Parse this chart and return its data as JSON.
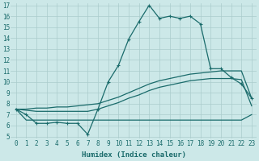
{
  "xlabel": "Humidex (Indice chaleur)",
  "bg_color": "#cce8e8",
  "grid_color": "#aacccc",
  "line_color": "#1a6b6b",
  "x_hours": [
    0,
    1,
    2,
    3,
    4,
    5,
    6,
    7,
    8,
    9,
    10,
    11,
    12,
    13,
    14,
    15,
    16,
    17,
    18,
    19,
    20,
    21,
    22,
    23
  ],
  "series_main": [
    7.5,
    7.0,
    6.2,
    6.2,
    6.3,
    6.2,
    6.2,
    5.2,
    7.5,
    10.0,
    11.5,
    13.9,
    15.5,
    17.0,
    15.8,
    16.0,
    15.8,
    16.0,
    15.3,
    11.2,
    11.2,
    10.4,
    9.8,
    8.5
  ],
  "line_upper": [
    7.5,
    7.5,
    7.6,
    7.6,
    7.7,
    7.7,
    7.8,
    7.9,
    8.0,
    8.3,
    8.6,
    9.0,
    9.4,
    9.8,
    10.1,
    10.3,
    10.5,
    10.7,
    10.8,
    10.9,
    11.0,
    11.0,
    11.0,
    8.5
  ],
  "line_mid": [
    7.5,
    7.4,
    7.3,
    7.3,
    7.3,
    7.3,
    7.3,
    7.3,
    7.5,
    7.8,
    8.1,
    8.5,
    8.8,
    9.2,
    9.5,
    9.7,
    9.9,
    10.1,
    10.2,
    10.3,
    10.3,
    10.3,
    10.2,
    7.8
  ],
  "line_lower": [
    7.5,
    6.5,
    6.5,
    6.5,
    6.5,
    6.5,
    6.5,
    6.5,
    6.5,
    6.5,
    6.5,
    6.5,
    6.5,
    6.5,
    6.5,
    6.5,
    6.5,
    6.5,
    6.5,
    6.5,
    6.5,
    6.5,
    6.5,
    7.0
  ],
  "ylim": [
    5,
    17
  ],
  "xlim": [
    -0.5,
    23.5
  ],
  "yticks": [
    5,
    6,
    7,
    8,
    9,
    10,
    11,
    12,
    13,
    14,
    15,
    16,
    17
  ],
  "xticks": [
    0,
    1,
    2,
    3,
    4,
    5,
    6,
    7,
    8,
    9,
    10,
    11,
    12,
    13,
    14,
    15,
    16,
    17,
    18,
    19,
    20,
    21,
    22,
    23
  ],
  "tick_fontsize": 5.5,
  "xlabel_fontsize": 6.5,
  "line_width": 0.9,
  "marker": "+",
  "marker_size": 3.5
}
